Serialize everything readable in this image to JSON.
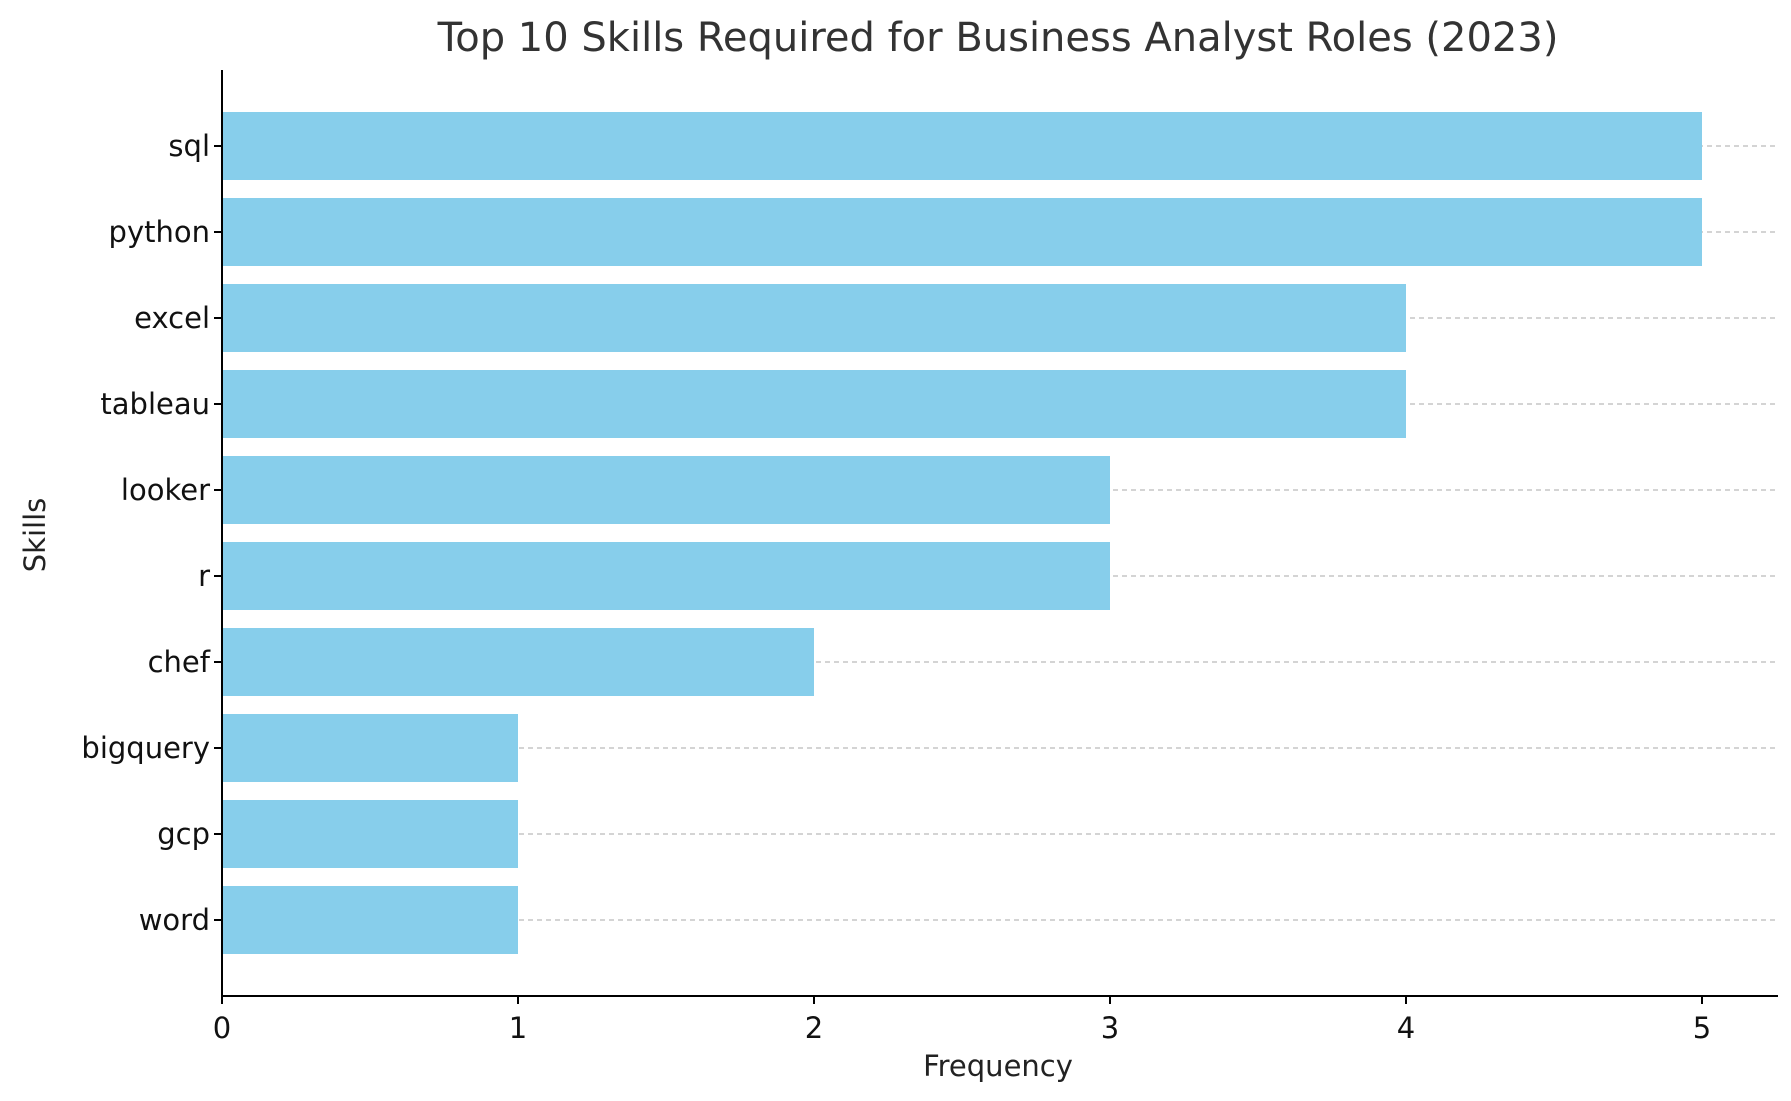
{
  "chart_data": {
    "type": "bar",
    "orientation": "horizontal",
    "title": "Top 10 Skills Required for Business Analyst Roles (2023)",
    "xlabel": "Frequency",
    "ylabel": "Skills",
    "categories": [
      "sql",
      "python",
      "excel",
      "tableau",
      "looker",
      "r",
      "chef",
      "bigquery",
      "gcp",
      "word"
    ],
    "values": [
      5,
      5,
      4,
      4,
      3,
      3,
      2,
      1,
      1,
      1
    ],
    "xlim": [
      0,
      5.25
    ],
    "xticks": [
      0,
      1,
      2,
      3,
      4,
      5
    ],
    "grid": "y-dashed",
    "legend": "none",
    "colors": {
      "bar": "#87CEEB",
      "grid": "#bbbbbb",
      "axis": "#000000"
    }
  }
}
